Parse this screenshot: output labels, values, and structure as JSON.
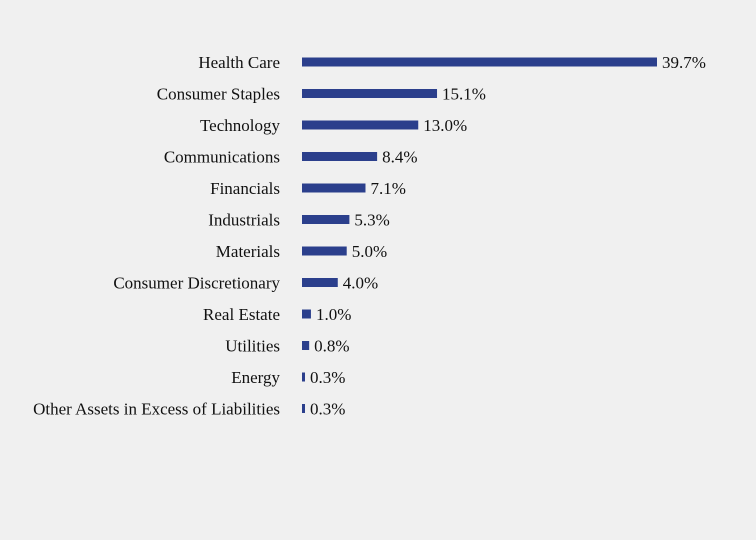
{
  "chart_data": {
    "type": "bar",
    "orientation": "horizontal",
    "categories": [
      "Health Care",
      "Consumer Staples",
      "Technology",
      "Communications",
      "Financials",
      "Industrials",
      "Materials",
      "Consumer Discretionary",
      "Real Estate",
      "Utilities",
      "Energy",
      "Other Assets in Excess of Liabilities"
    ],
    "values": [
      39.7,
      15.1,
      13.0,
      8.4,
      7.1,
      5.3,
      5.0,
      4.0,
      1.0,
      0.8,
      0.3,
      0.3
    ],
    "value_labels": [
      "39.7%",
      "15.1%",
      "13.0%",
      "8.4%",
      "7.1%",
      "5.3%",
      "5.0%",
      "4.0%",
      "1.0%",
      "0.8%",
      "0.3%",
      "0.3%"
    ],
    "title": "",
    "xlabel": "",
    "ylabel": "",
    "xlim": [
      0,
      39.7
    ],
    "grid": false,
    "legend": "none",
    "bar_color": "#2b3f8c"
  }
}
